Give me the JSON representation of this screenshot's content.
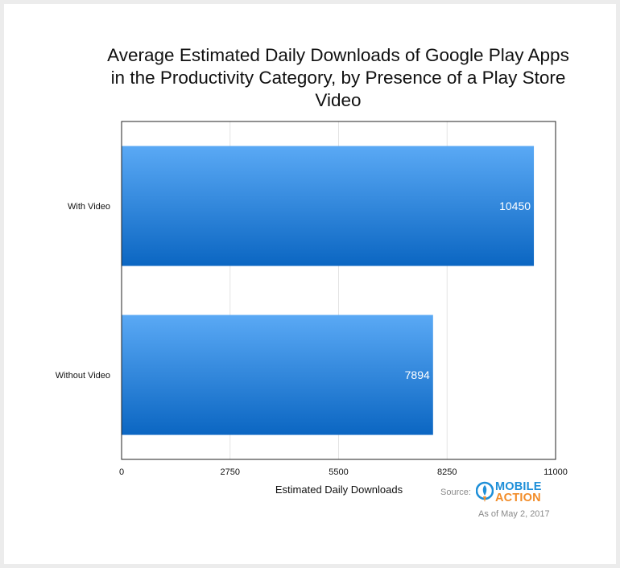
{
  "chart_data": {
    "type": "bar",
    "orientation": "horizontal",
    "title": "Average Estimated Daily Downloads of Google Play Apps in the Productivity Category, by Presence of a Play Store Video",
    "categories": [
      "With Video",
      "Without Video"
    ],
    "values": [
      10450,
      7894
    ],
    "data_labels": [
      "10450",
      "7894"
    ],
    "xlabel": "Estimated Daily Downloads",
    "ylabel": "",
    "xlim": [
      0,
      11000
    ],
    "xticks": [
      0,
      2750,
      5500,
      8250,
      11000
    ],
    "grid": true,
    "legend": "none",
    "colors": {
      "bar_top": "#5aa9f5",
      "bar_bottom": "#0b66c2",
      "label": "#ffffff",
      "grid": "#e3e3e3"
    }
  },
  "footer": {
    "source_label": "Source:",
    "brand_line1": "MOBILE",
    "brand_line2": "ACTION",
    "as_of": "As of May 2, 2017"
  },
  "icons": {
    "brand_logo": "rocket-logo-icon"
  }
}
